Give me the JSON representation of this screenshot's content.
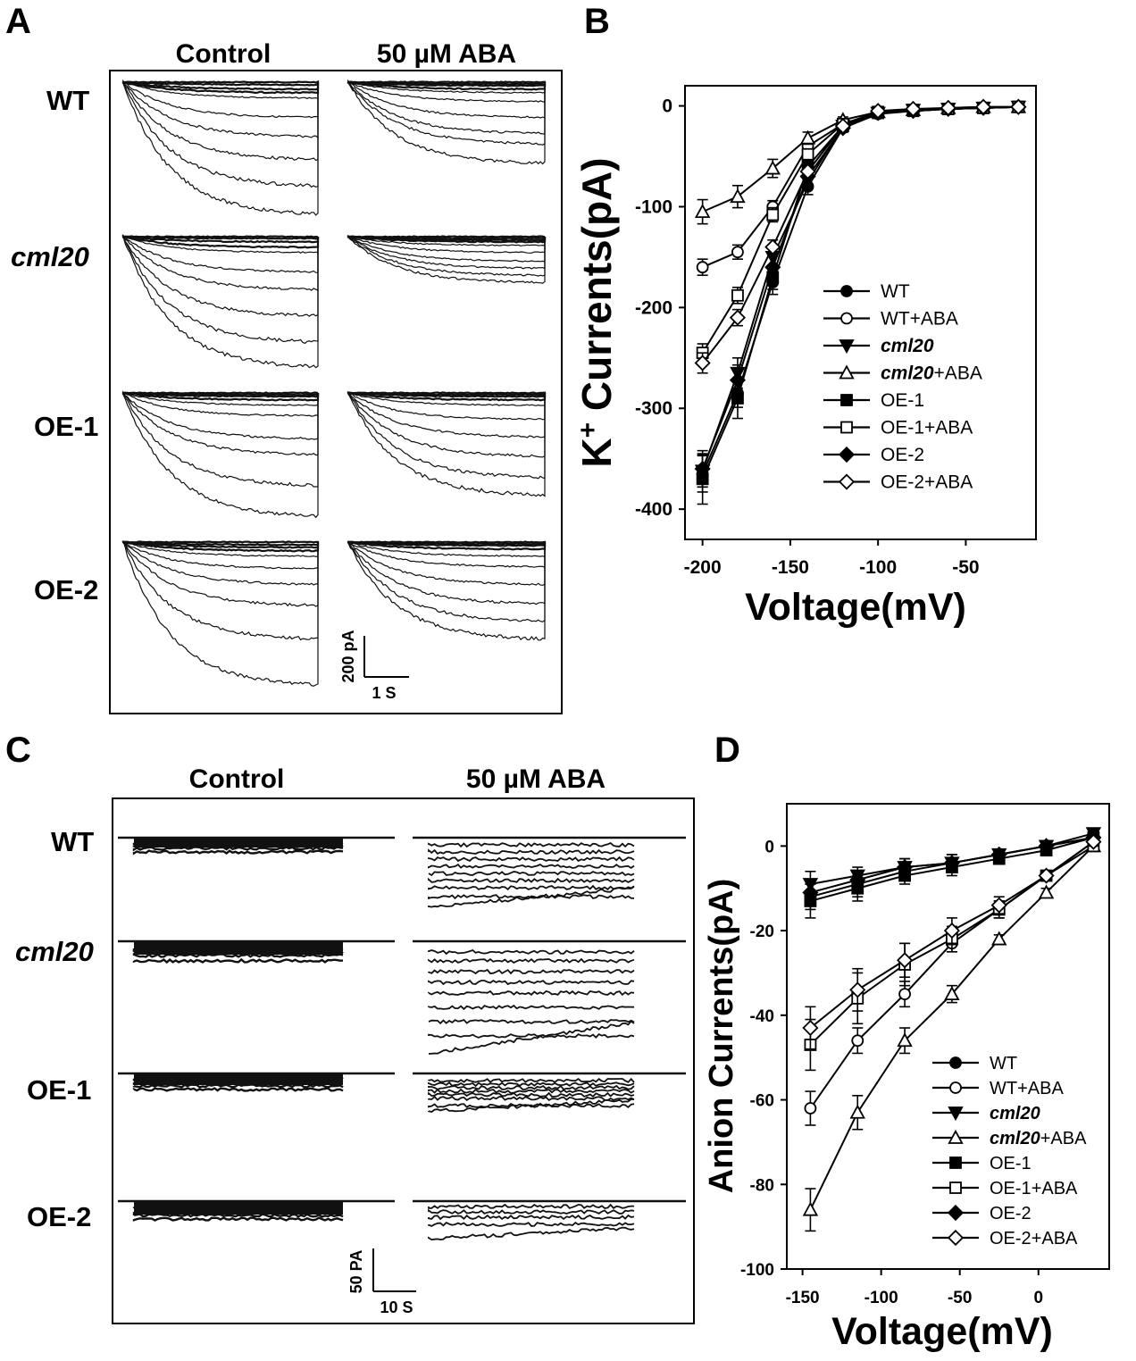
{
  "panels": {
    "A": {
      "letter": "A",
      "col_headers": [
        "Control",
        "50 µM ABA"
      ],
      "row_labels": [
        "WT",
        "cml20",
        "OE-1",
        "OE-2"
      ],
      "scale_y": "200 pA",
      "scale_x": "1 S"
    },
    "B": {
      "letter": "B"
    },
    "C": {
      "letter": "C",
      "col_headers": [
        "Control",
        "50 µM ABA"
      ],
      "row_labels": [
        "WT",
        "cml20",
        "OE-1",
        "OE-2"
      ],
      "scale_y": "50 PA",
      "scale_x": "10 S"
    },
    "D": {
      "letter": "D"
    }
  },
  "chart_data": [
    {
      "panel": "B",
      "type": "line",
      "xlabel": "Voltage(mV)",
      "ylabel": "K+ Currents(pA)",
      "ylabel_base": "K",
      "ylabel_sup": "+",
      "ylabel_rest": " Currents(pA)",
      "xlim": [
        -210,
        -10
      ],
      "ylim": [
        -430,
        20
      ],
      "xticks": [
        -200,
        -150,
        -100,
        -50
      ],
      "yticks": [
        0,
        -100,
        -200,
        -300,
        -400
      ],
      "legend_position": "right-middle",
      "x": [
        -200,
        -180,
        -160,
        -140,
        -120,
        -100,
        -80,
        -60,
        -40,
        -20
      ],
      "series": [
        {
          "name": "WT",
          "name_base": "WT",
          "name_suffix": "",
          "italic": false,
          "marker": "circle",
          "filled": true,
          "values": [
            -365,
            -285,
            -175,
            -80,
            -22,
            -8,
            -5,
            -3,
            -2,
            -1
          ],
          "errors": [
            18,
            14,
            12,
            8,
            4,
            2,
            2,
            1,
            1,
            1
          ]
        },
        {
          "name": "WT+ABA",
          "name_base": "WT",
          "name_suffix": "+ABA",
          "italic": false,
          "marker": "circle",
          "filled": false,
          "values": [
            -160,
            -145,
            -100,
            -40,
            -18,
            -7,
            -4,
            -3,
            -2,
            -1
          ],
          "errors": [
            8,
            7,
            6,
            4,
            3,
            2,
            1,
            1,
            1,
            1
          ]
        },
        {
          "name": "cml20",
          "name_base": "cml20",
          "name_suffix": "",
          "italic": true,
          "marker": "triangle-down",
          "filled": true,
          "values": [
            -362,
            -265,
            -150,
            -75,
            -20,
            -7,
            -4,
            -3,
            -2,
            -1
          ],
          "errors": [
            16,
            15,
            10,
            7,
            4,
            2,
            1,
            1,
            1,
            1
          ]
        },
        {
          "name": "cml20+ABA",
          "name_base": "cml20",
          "name_suffix": "+ABA",
          "italic": true,
          "marker": "triangle-up",
          "filled": false,
          "values": [
            -105,
            -90,
            -62,
            -32,
            -14,
            -6,
            -4,
            -2,
            -1,
            -1
          ],
          "errors": [
            12,
            11,
            9,
            6,
            3,
            2,
            1,
            1,
            1,
            1
          ]
        },
        {
          "name": "OE-1",
          "name_base": "OE-1",
          "name_suffix": "",
          "italic": false,
          "marker": "square",
          "filled": true,
          "values": [
            -370,
            -290,
            -170,
            -60,
            -20,
            -7,
            -5,
            -3,
            -2,
            -1
          ],
          "errors": [
            25,
            20,
            12,
            8,
            4,
            2,
            1,
            1,
            1,
            1
          ]
        },
        {
          "name": "OE-1+ABA",
          "name_base": "OE-1",
          "name_suffix": "+ABA",
          "italic": false,
          "marker": "square",
          "filled": false,
          "values": [
            -245,
            -188,
            -108,
            -48,
            -18,
            -6,
            -4,
            -3,
            -2,
            -1
          ],
          "errors": [
            9,
            8,
            7,
            5,
            3,
            2,
            1,
            1,
            1,
            1
          ]
        },
        {
          "name": "OE-2",
          "name_base": "OE-2",
          "name_suffix": "",
          "italic": false,
          "marker": "diamond",
          "filled": true,
          "values": [
            -360,
            -272,
            -160,
            -70,
            -22,
            -7,
            -5,
            -3,
            -2,
            -1
          ],
          "errors": [
            18,
            15,
            11,
            7,
            4,
            2,
            1,
            1,
            1,
            1
          ]
        },
        {
          "name": "OE-2+ABA",
          "name_base": "OE-2",
          "name_suffix": "+ABA",
          "italic": false,
          "marker": "diamond",
          "filled": false,
          "values": [
            -255,
            -210,
            -140,
            -65,
            -20,
            -5,
            -3,
            -2,
            -1,
            -1
          ],
          "errors": [
            10,
            8,
            7,
            5,
            3,
            2,
            1,
            1,
            1,
            1
          ]
        }
      ]
    },
    {
      "panel": "D",
      "type": "line",
      "xlabel": "Voltage(mV)",
      "ylabel": "Anion Currents(pA)",
      "xlim": [
        -160,
        45
      ],
      "ylim": [
        -100,
        10
      ],
      "xticks": [
        -150,
        -100,
        -50,
        0
      ],
      "yticks": [
        0,
        -20,
        -40,
        -60,
        -80,
        -100
      ],
      "legend_position": "bottom-right",
      "x": [
        -145,
        -115,
        -85,
        -55,
        -25,
        5,
        35
      ],
      "series": [
        {
          "name": "WT",
          "name_base": "WT",
          "name_suffix": "",
          "italic": false,
          "marker": "circle",
          "filled": true,
          "values": [
            -12,
            -9,
            -6,
            -4,
            -2,
            0,
            2
          ],
          "errors": [
            3,
            3,
            2,
            2,
            1,
            1,
            1
          ]
        },
        {
          "name": "WT+ABA",
          "name_base": "WT",
          "name_suffix": "+ABA",
          "italic": false,
          "marker": "circle",
          "filled": false,
          "values": [
            -62,
            -46,
            -35,
            -23,
            -15,
            -7,
            1
          ],
          "errors": [
            4,
            3,
            3,
            2,
            2,
            1,
            1
          ]
        },
        {
          "name": "cml20",
          "name_base": "cml20",
          "name_suffix": "",
          "italic": true,
          "marker": "triangle-down",
          "filled": true,
          "values": [
            -9,
            -7,
            -5,
            -4,
            -2,
            0,
            3
          ],
          "errors": [
            3,
            2,
            2,
            2,
            1,
            1,
            1
          ]
        },
        {
          "name": "cml20+ABA",
          "name_base": "cml20",
          "name_suffix": "+ABA",
          "italic": true,
          "marker": "triangle-up",
          "filled": false,
          "values": [
            -86,
            -63,
            -46,
            -35,
            -22,
            -11,
            0
          ],
          "errors": [
            5,
            4,
            3,
            2,
            1,
            1,
            1
          ]
        },
        {
          "name": "OE-1",
          "name_base": "OE-1",
          "name_suffix": "",
          "italic": false,
          "marker": "square",
          "filled": true,
          "values": [
            -13,
            -10,
            -7,
            -5,
            -3,
            -1,
            2
          ],
          "errors": [
            4,
            3,
            2,
            2,
            1,
            1,
            1
          ]
        },
        {
          "name": "OE-1+ABA",
          "name_base": "OE-1",
          "name_suffix": "+ABA",
          "italic": false,
          "marker": "square",
          "filled": false,
          "values": [
            -47,
            -36,
            -28,
            -22,
            -15,
            -7,
            0
          ],
          "errors": [
            6,
            6,
            5,
            3,
            2,
            1,
            1
          ]
        },
        {
          "name": "OE-2",
          "name_base": "OE-2",
          "name_suffix": "",
          "italic": false,
          "marker": "diamond",
          "filled": true,
          "values": [
            -11,
            -8,
            -5,
            -4,
            -2,
            0,
            2
          ],
          "errors": [
            3,
            2,
            2,
            2,
            1,
            1,
            1
          ]
        },
        {
          "name": "OE-2+ABA",
          "name_base": "OE-2",
          "name_suffix": "+ABA",
          "italic": false,
          "marker": "diamond",
          "filled": false,
          "values": [
            -43,
            -34,
            -27,
            -20,
            -14,
            -7,
            1
          ],
          "errors": [
            5,
            5,
            4,
            3,
            2,
            1,
            1
          ]
        }
      ]
    }
  ]
}
